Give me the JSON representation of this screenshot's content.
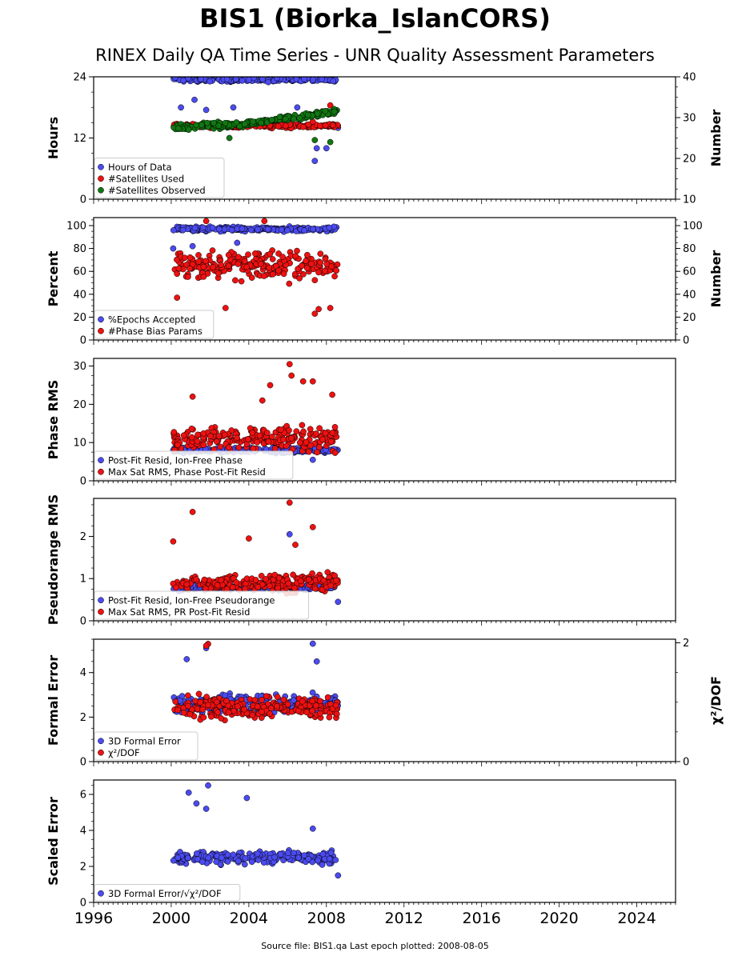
{
  "title": "BIS1 (Biorka_IslanCORS)",
  "subtitle": "RINEX Daily QA Time Series - UNR Quality Assessment Parameters",
  "footer": "Source file: BIS1.qa Last epoch plotted: 2008-08-05",
  "colors": {
    "blue": "#4b4bf0",
    "red": "#ee1111",
    "green": "#117711"
  },
  "chart_data": [
    {
      "type": "scatter",
      "ylabel": "Hours",
      "ylim": [
        0,
        24
      ],
      "yticks": [
        0,
        12,
        24
      ],
      "ylabel_right": "Number",
      "ylim_right": [
        10,
        40
      ],
      "yticks_right": [
        10,
        20,
        30,
        40
      ],
      "legend": "lower-left",
      "grid": false,
      "series": [
        {
          "name": "Hours of Data",
          "color": "blue",
          "axis": "left",
          "base": 23.5,
          "spread": 0.8,
          "outliers": [
            [
              2000.5,
              18
            ],
            [
              2001.2,
              19.5
            ],
            [
              2001.8,
              17.5
            ],
            [
              2003.2,
              18
            ],
            [
              2006.5,
              18
            ],
            [
              2007.4,
              7.5
            ],
            [
              2007.5,
              10
            ],
            [
              2008.0,
              10
            ],
            [
              2008.6,
              14
            ]
          ]
        },
        {
          "name": "#Satellites Used",
          "color": "red",
          "axis": "right",
          "base": 28,
          "spread": 0.8,
          "outliers": [
            [
              2007.3,
              29
            ],
            [
              2008.2,
              33
            ]
          ]
        },
        {
          "name": "#Satellites Observed",
          "color": "green",
          "axis": "right",
          "base": 28.5,
          "spread": 1.2,
          "trend": [
            [
              2000,
              27.5
            ],
            [
              2004,
              28.5
            ],
            [
              2008.6,
              31.5
            ]
          ],
          "outliers": [
            [
              2003.0,
              25
            ],
            [
              2007.4,
              24.5
            ],
            [
              2008.2,
              24
            ]
          ]
        }
      ]
    },
    {
      "type": "scatter",
      "ylabel": "Percent",
      "ylim": [
        0,
        107
      ],
      "yticks": [
        0,
        20,
        40,
        60,
        80,
        100
      ],
      "ylabel_right": "Number",
      "ylim_right": [
        0,
        107
      ],
      "yticks_right": [
        0,
        20,
        40,
        60,
        80,
        100
      ],
      "legend": "lower-left",
      "grid": false,
      "series": [
        {
          "name": "%Epochs Accepted",
          "color": "blue",
          "axis": "left",
          "base": 97,
          "spread": 3,
          "outliers": [
            [
              2000.1,
              80
            ],
            [
              2001.1,
              82
            ],
            [
              2003.4,
              85
            ]
          ]
        },
        {
          "name": "#Phase Bias Params",
          "color": "red",
          "axis": "right",
          "base": 65,
          "spread": 18,
          "outliers": [
            [
              2000.3,
              37
            ],
            [
              2002.8,
              28
            ],
            [
              2007.4,
              23
            ],
            [
              2007.6,
              27
            ],
            [
              2008.2,
              28
            ],
            [
              2001.8,
              104
            ],
            [
              2004.8,
              104
            ]
          ]
        }
      ]
    },
    {
      "type": "scatter",
      "ylabel": "Phase RMS",
      "ylim": [
        0,
        32
      ],
      "yticks": [
        0,
        10,
        20,
        30
      ],
      "legend": "lower-left",
      "grid": false,
      "series": [
        {
          "name": "Post-Fit Resid, Ion-Free Phase",
          "color": "blue",
          "axis": "left",
          "base": 8,
          "spread": 1.2,
          "outliers": [
            [
              2007.3,
              5.5
            ]
          ]
        },
        {
          "name": "Max Sat RMS, Phase Post-Fit Resid",
          "color": "red",
          "axis": "left",
          "base": 11,
          "spread": 5,
          "outliers": [
            [
              2006.1,
              30.5
            ],
            [
              2006.2,
              27.5
            ],
            [
              2006.8,
              26
            ],
            [
              2007.3,
              26
            ],
            [
              2005.1,
              25
            ],
            [
              2004.7,
              21
            ],
            [
              2001.1,
              22
            ],
            [
              2008.3,
              22.5
            ]
          ]
        }
      ]
    },
    {
      "type": "scatter",
      "ylabel": "Pseudorange RMS",
      "ylim": [
        0,
        2.9
      ],
      "yticks": [
        0,
        1,
        2
      ],
      "legend": "lower-left",
      "grid": false,
      "series": [
        {
          "name": "Post-Fit Resid, Ion-Free Pseudorange",
          "color": "blue",
          "axis": "left",
          "base": 0.8,
          "spread": 0.12,
          "outliers": [
            [
              2006.1,
              2.05
            ],
            [
              2008.6,
              0.45
            ]
          ]
        },
        {
          "name": "Max Sat RMS, PR Post-Fit Resid",
          "color": "red",
          "axis": "left",
          "base": 0.9,
          "spread": 0.3,
          "outliers": [
            [
              2000.1,
              1.88
            ],
            [
              2001.1,
              2.58
            ],
            [
              2006.1,
              2.8
            ],
            [
              2007.3,
              2.22
            ],
            [
              2004.0,
              1.95
            ],
            [
              2006.4,
              1.8
            ]
          ]
        }
      ]
    },
    {
      "type": "scatter",
      "ylabel": "Formal Error",
      "ylim": [
        0,
        5.5
      ],
      "yticks": [
        0,
        2,
        4
      ],
      "ylabel_right": "χ²/DOF",
      "ylim_right": [
        0,
        2.06
      ],
      "yticks_right": [
        0,
        2
      ],
      "legend": "lower-left",
      "grid": false,
      "series": [
        {
          "name": "3D Formal Error",
          "color": "blue",
          "axis": "left",
          "base": 2.6,
          "spread": 0.7,
          "outliers": [
            [
              2000.8,
              4.6
            ],
            [
              2001.8,
              5.1
            ],
            [
              2007.3,
              5.3
            ],
            [
              2007.5,
              4.5
            ]
          ]
        },
        {
          "name": "χ²/DOF",
          "color": "red",
          "axis": "right",
          "base": 0.9,
          "spread": 0.3,
          "outliers": [
            [
              2001.9,
              1.98
            ],
            [
              2001.8,
              1.95
            ]
          ]
        }
      ]
    },
    {
      "type": "scatter",
      "ylabel": "Scaled Error",
      "ylim": [
        0,
        6.8
      ],
      "yticks": [
        0,
        2,
        4,
        6
      ],
      "legend": "lower-left",
      "grid": false,
      "series": [
        {
          "name": "3D Formal Error/√χ²/DOF",
          "color": "blue",
          "axis": "left",
          "base": 2.5,
          "spread": 0.6,
          "outliers": [
            [
              2000.9,
              6.1
            ],
            [
              2001.9,
              6.5
            ],
            [
              2003.9,
              5.8
            ],
            [
              2001.3,
              5.5
            ],
            [
              2001.8,
              5.2
            ],
            [
              2007.3,
              4.1
            ],
            [
              2008.6,
              1.5
            ]
          ]
        }
      ]
    }
  ],
  "x_axis": {
    "min": 1996,
    "max": 2026,
    "ticks": [
      1996,
      2000,
      2004,
      2008,
      2012,
      2016,
      2020,
      2024
    ],
    "data_start": 2000.1,
    "data_end": 2008.6
  }
}
